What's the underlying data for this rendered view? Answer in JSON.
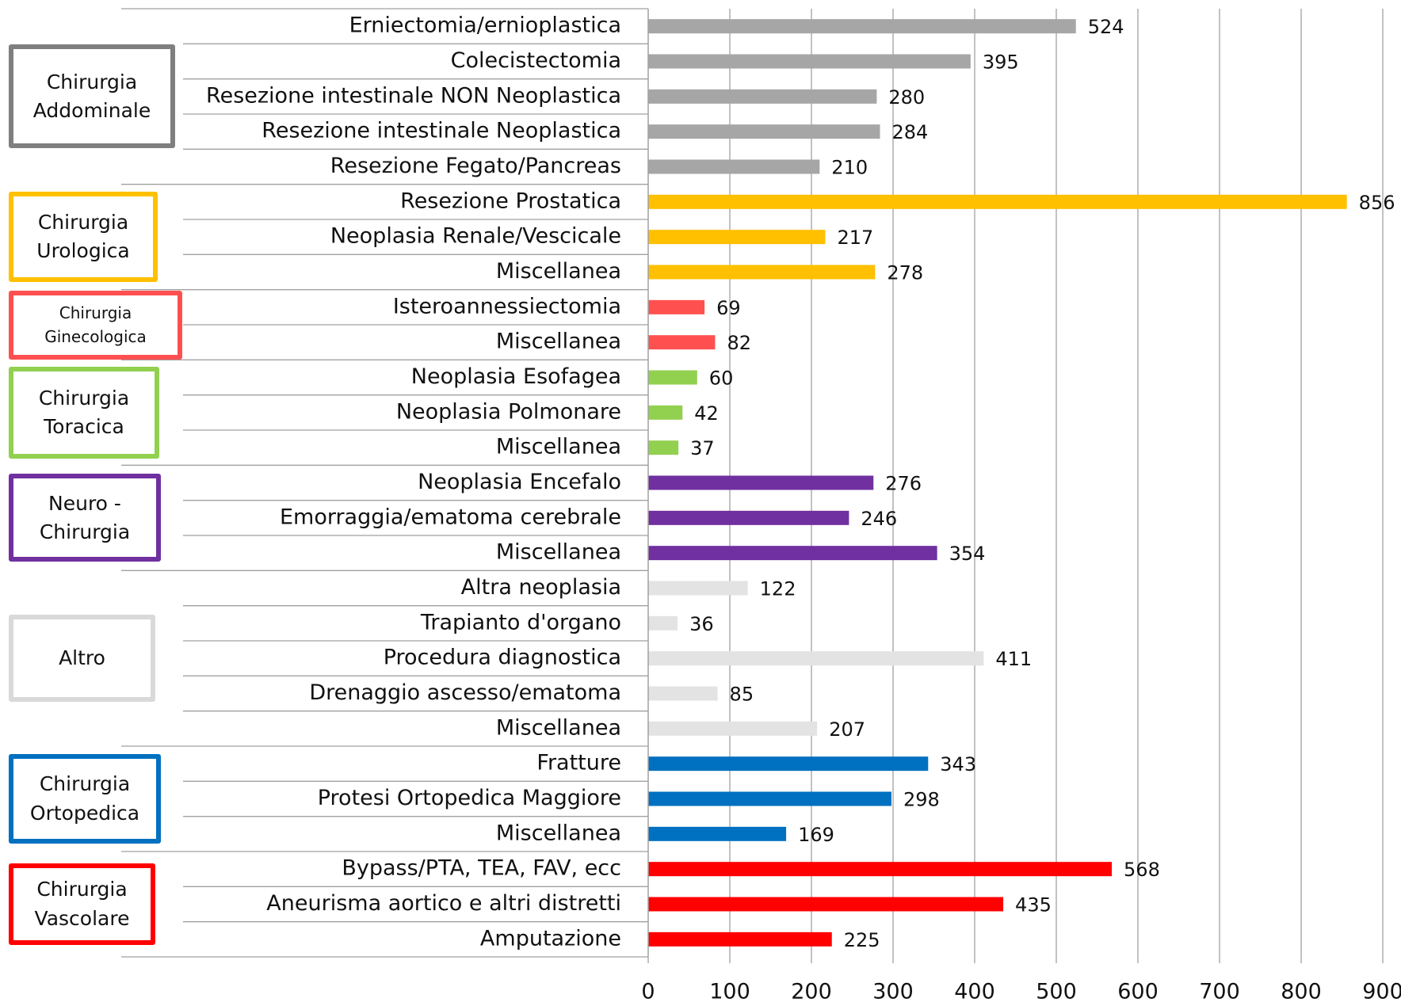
{
  "chart_data": {
    "type": "bar",
    "series": [
      {
        "name": "Chirurgia Addominale",
        "color": "#a6a6a6",
        "box_color": "#7f7f7f",
        "categories": [
          "Erniectomia/ernioplastica",
          "Colecistectomia",
          "Resezione intestinale NON Neoplastica",
          "Resezione intestinale Neoplastica",
          "Resezione Fegato/Pancreas"
        ],
        "values": [
          524,
          395,
          280,
          284,
          210
        ]
      },
      {
        "name": "Chirurgia Urologica",
        "color": "#ffc000",
        "box_color": "#ffc000",
        "categories": [
          "Resezione Prostatica",
          "Neoplasia Renale/Vescicale",
          "Miscellanea"
        ],
        "values": [
          856,
          217,
          278
        ]
      },
      {
        "name": "Chirurgia Ginecologica",
        "color": "#ff5050",
        "box_color": "#ff5050",
        "categories": [
          "Isteroannessiectomia",
          "Miscellanea"
        ],
        "values": [
          69,
          82
        ]
      },
      {
        "name": "Chirurgia Toracica",
        "color": "#92d050",
        "box_color": "#92d050",
        "categories": [
          "Neoplasia Esofagea",
          "Neoplasia Polmonare",
          "Miscellanea"
        ],
        "values": [
          60,
          42,
          37
        ]
      },
      {
        "name": "Neuro - Chirurgia",
        "color": "#7030a0",
        "box_color": "#7030a0",
        "categories": [
          "Neoplasia Encefalo",
          "Emorraggia/ematoma cerebrale",
          "Miscellanea"
        ],
        "values": [
          276,
          246,
          354
        ]
      },
      {
        "name": "Altro",
        "color": "#e3e3e3",
        "box_color": "#d9d9d9",
        "categories": [
          "Altra neoplasia",
          "Trapianto d'organo",
          "Procedura diagnostica",
          "Drenaggio ascesso/ematoma",
          "Miscellanea"
        ],
        "values": [
          122,
          36,
          411,
          85,
          207
        ]
      },
      {
        "name": "Chirurgia Ortopedica",
        "color": "#0070c0",
        "box_color": "#0070c0",
        "categories": [
          "Fratture",
          "Protesi Ortopedica Maggiore",
          "Miscellanea"
        ],
        "values": [
          343,
          298,
          169
        ]
      },
      {
        "name": "Chirurgia Vascolare",
        "color": "#ff0000",
        "box_color": "#ff0000",
        "categories": [
          "Bypass/PTA, TEA, FAV, ecc",
          "Aneurisma aortico e altri distretti",
          "Amputazione"
        ],
        "values": [
          568,
          435,
          225
        ]
      }
    ],
    "xlim": [
      0,
      900
    ],
    "xticks": [
      0,
      100,
      200,
      300,
      400,
      500,
      600,
      700,
      800,
      900
    ],
    "grid": true
  }
}
